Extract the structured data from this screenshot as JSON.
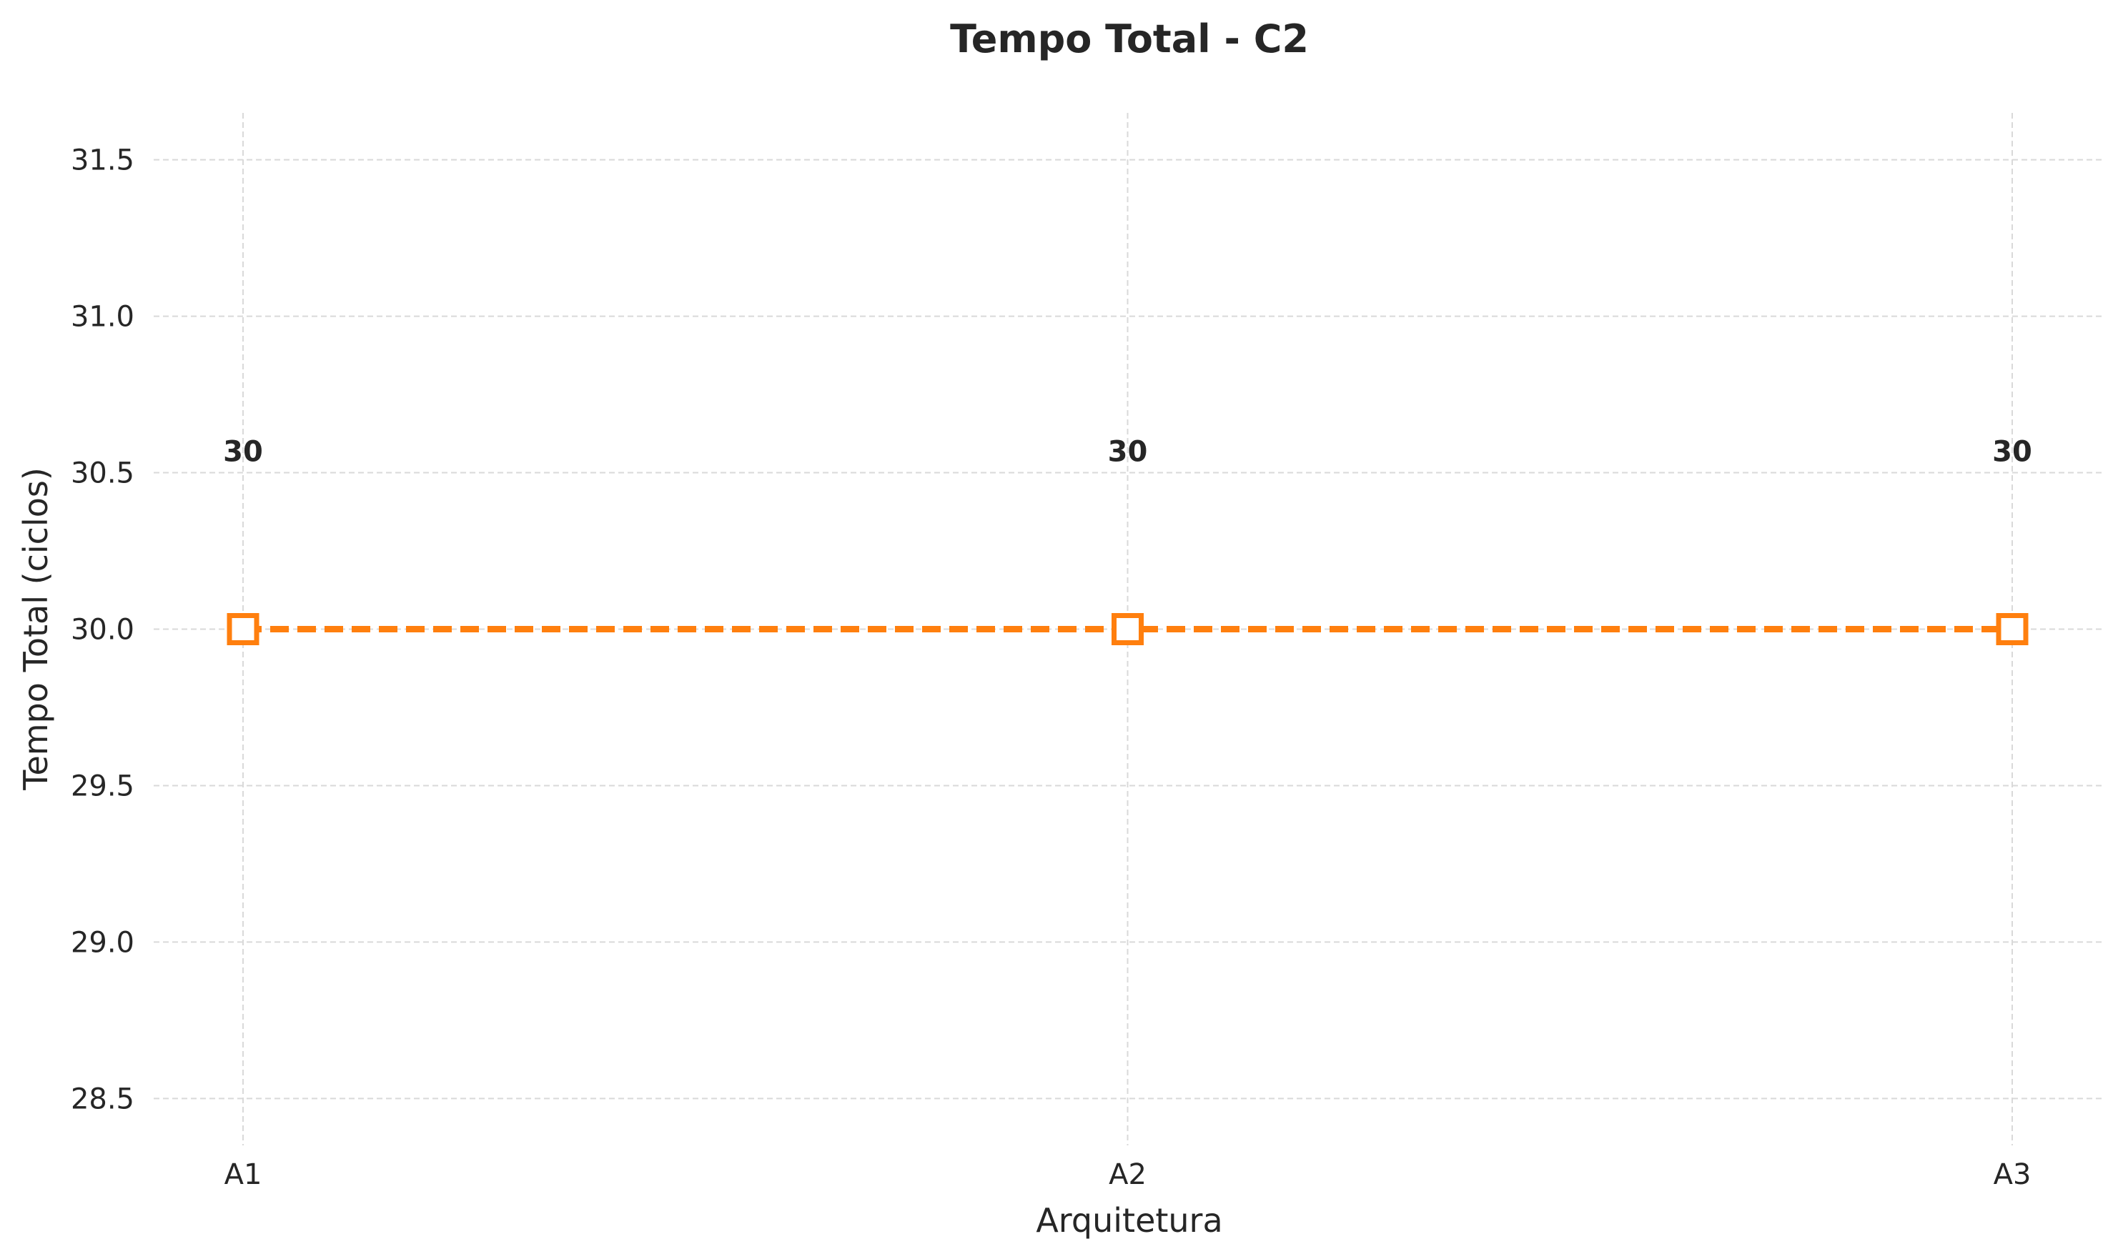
{
  "chart_data": {
    "type": "line",
    "title": "Tempo Total - C2",
    "xlabel": "Arquitetura",
    "ylabel": "Tempo Total (ciclos)",
    "categories": [
      "A1",
      "A2",
      "A3"
    ],
    "series": [
      {
        "values": [
          30,
          30,
          30
        ],
        "data_labels": [
          "30",
          "30",
          "30"
        ],
        "color": "#ff7f0e",
        "line_style": "dashed",
        "marker": "square-open"
      }
    ],
    "ylim": [
      28.35,
      31.65
    ],
    "yticks": [
      28.5,
      29.0,
      29.5,
      30.0,
      30.5,
      31.0,
      31.5
    ],
    "ytick_labels": [
      "28.5",
      "29.0",
      "29.5",
      "30.0",
      "30.5",
      "31.0",
      "31.5"
    ],
    "grid": true,
    "legend": "none"
  }
}
